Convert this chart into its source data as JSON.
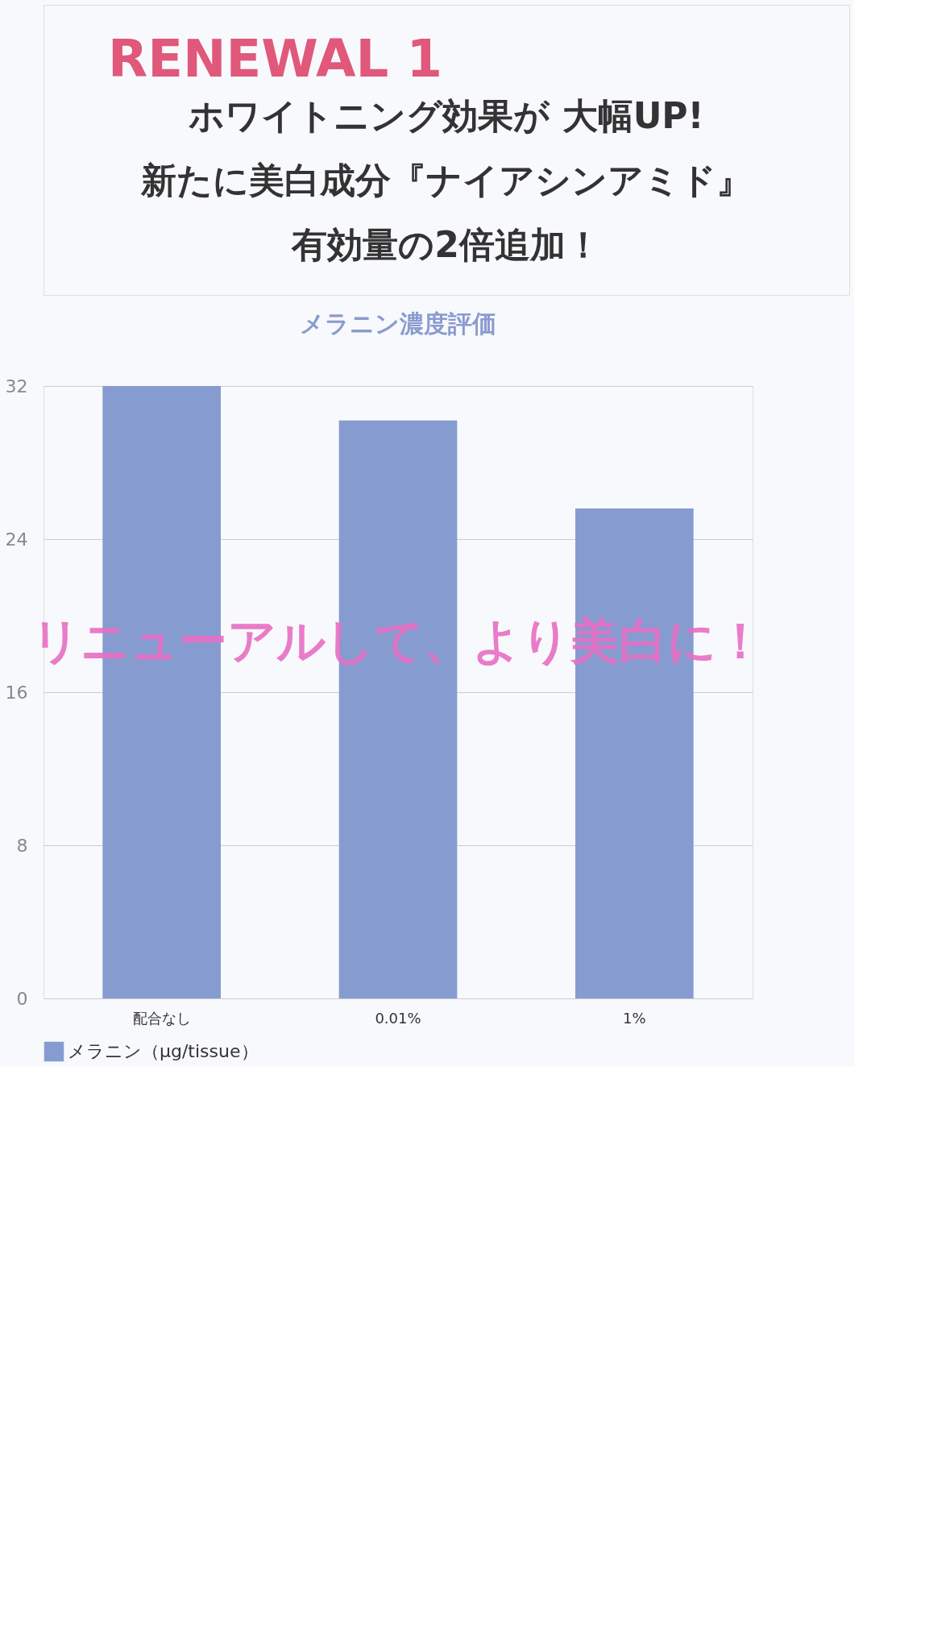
{
  "chart_data": {
    "type": "bar",
    "title": "メラニン濃度評価",
    "categories": [
      "配合なし",
      "0.01%",
      "1%"
    ],
    "series": [
      {
        "name": "メラニン（µg/tissue）",
        "color": "#869bd0",
        "values": [
          32,
          30.2,
          25.6
        ]
      }
    ],
    "ylim": [
      0,
      32
    ],
    "yticks": [
      0,
      8,
      16,
      24,
      32
    ],
    "grid": "y",
    "legend": "bottom",
    "annotations": [
      "RENEWAL 1",
      "ホワイトニング効果が 大幅UP!",
      "新たに美白成分『ナイアシンアミド』",
      "有効量の2倍追加！",
      "リニューアルして、より美白に！"
    ]
  }
}
